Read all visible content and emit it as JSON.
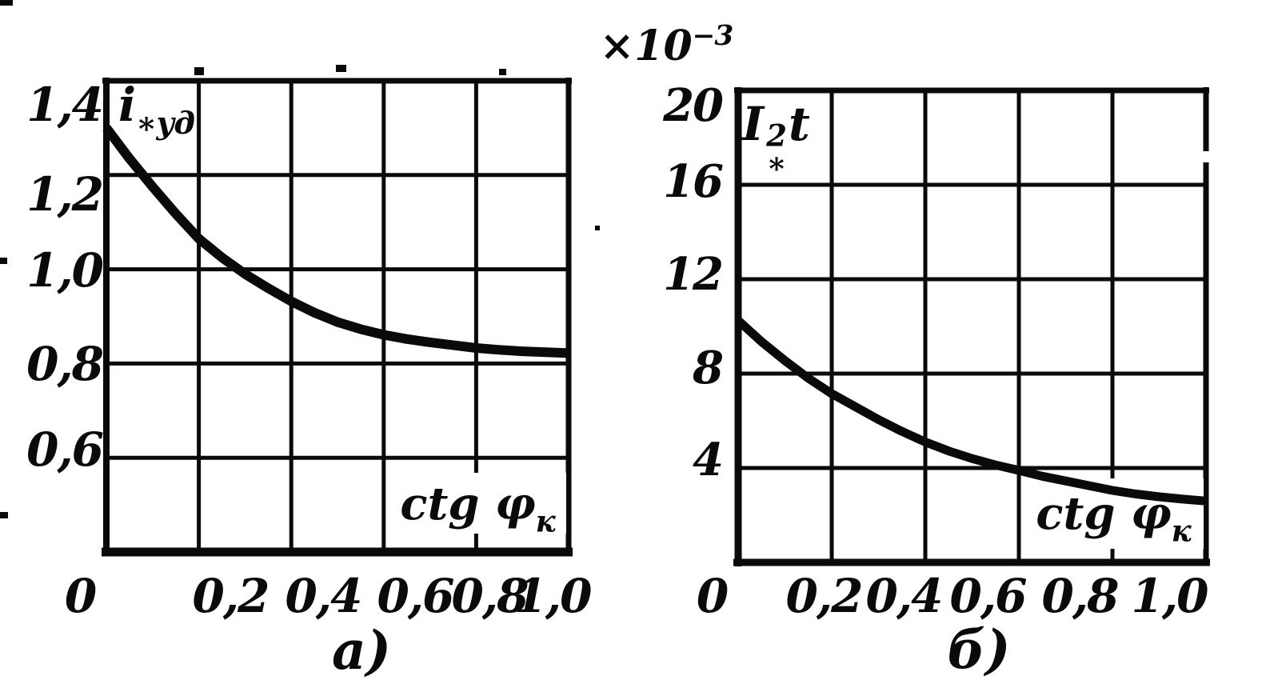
{
  "figure": {
    "background": "#ffffff",
    "ink": "#0a0a0a",
    "caption_a": "а)",
    "caption_b": "б)"
  },
  "chart_data": [
    {
      "id": "a",
      "type": "line",
      "caption": "а)",
      "quantity_label": {
        "base": "i",
        "sub": "∗уд"
      },
      "xlabel": {
        "base": "ctg φ",
        "sub": "к"
      },
      "x_tick_labels": [
        "0",
        "0,2",
        "0,4",
        "0,6",
        "0,8",
        "1,0"
      ],
      "x_tick_values": [
        0,
        0.2,
        0.4,
        0.6,
        0.8,
        1.0
      ],
      "y_tick_labels": [
        "1,4",
        "1,2",
        "1,0",
        "0,8",
        "0,6"
      ],
      "y_tick_values": [
        1.4,
        1.2,
        1.0,
        0.8,
        0.6
      ],
      "xlim": [
        0,
        1.0
      ],
      "ylim": [
        0.4,
        1.4
      ],
      "grid": true,
      "legend": false,
      "series": [
        {
          "name": "i_ud_vs_ctg_phi_k",
          "x": [
            0,
            0.05,
            0.1,
            0.15,
            0.2,
            0.25,
            0.3,
            0.35,
            0.4,
            0.45,
            0.5,
            0.55,
            0.6,
            0.65,
            0.7,
            0.75,
            0.8,
            0.85,
            0.9,
            0.95,
            1.0
          ],
          "y": [
            1.3,
            1.235,
            1.175,
            1.118,
            1.065,
            1.025,
            0.99,
            0.96,
            0.932,
            0.908,
            0.888,
            0.873,
            0.861,
            0.852,
            0.845,
            0.839,
            0.833,
            0.829,
            0.826,
            0.824,
            0.822
          ]
        }
      ]
    },
    {
      "id": "b",
      "type": "line",
      "caption": "б)",
      "y_multiplier": {
        "base": "×10",
        "sup": "−3"
      },
      "quantity_label": {
        "base": "I",
        "sup": "2",
        "sub": "∗",
        "tail": "t"
      },
      "xlabel": {
        "base": "ctg φ",
        "sub": "к"
      },
      "x_tick_labels": [
        "0",
        "0,2",
        "0,4",
        "0,6",
        "0,8",
        "1,0"
      ],
      "x_tick_values": [
        0,
        0.2,
        0.4,
        0.6,
        0.8,
        1.0
      ],
      "y_tick_labels": [
        "20",
        "16",
        "12",
        "8",
        "4"
      ],
      "y_tick_values": [
        20,
        16,
        12,
        8,
        4
      ],
      "xlim": [
        0,
        1.0
      ],
      "ylim": [
        0,
        20
      ],
      "grid": true,
      "legend": false,
      "series": [
        {
          "name": "I2t_vs_ctg_phi_k",
          "x": [
            0,
            0.05,
            0.1,
            0.15,
            0.2,
            0.25,
            0.3,
            0.35,
            0.4,
            0.45,
            0.5,
            0.55,
            0.6,
            0.65,
            0.7,
            0.75,
            0.8,
            0.85,
            0.9,
            0.95,
            1.0
          ],
          "y": [
            10.25,
            9.35,
            8.55,
            7.8,
            7.15,
            6.6,
            6.05,
            5.55,
            5.1,
            4.72,
            4.4,
            4.13,
            3.9,
            3.65,
            3.45,
            3.25,
            3.05,
            2.9,
            2.78,
            2.68,
            2.6
          ]
        }
      ]
    }
  ]
}
